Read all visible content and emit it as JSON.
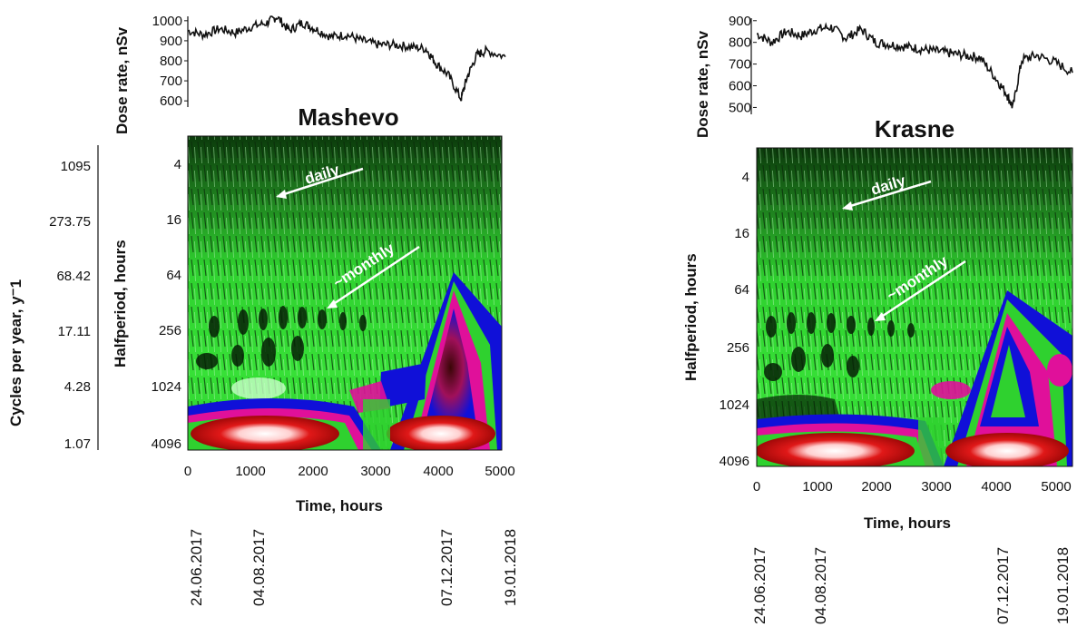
{
  "colors": {
    "accent_green": "#2fd12f",
    "dark_green": "#0b3a0b",
    "blue": "#1010d8",
    "magenta": "#e0109a",
    "red": "#d81818",
    "white": "#ffffff"
  },
  "chart_data": [
    {
      "type": "line",
      "panel": "Mashevo dose rate",
      "ylabel": "Dose rate, nSv",
      "yticks": [
        "1000",
        "900",
        "800",
        "700",
        "600"
      ],
      "ylim": [
        560,
        1040
      ],
      "xlim": [
        0,
        5000
      ],
      "x": [
        0,
        250,
        500,
        750,
        1000,
        1250,
        1400,
        1600,
        1800,
        2000,
        2250,
        2500,
        2750,
        3000,
        3250,
        3500,
        3750,
        3900,
        4100,
        4300,
        4400,
        4550,
        4700,
        5000
      ],
      "values": [
        950,
        930,
        960,
        940,
        970,
        990,
        1020,
        950,
        990,
        960,
        920,
        930,
        900,
        880,
        880,
        870,
        860,
        790,
        730,
        610,
        720,
        830,
        850,
        820
      ]
    },
    {
      "type": "heatmap",
      "panel": "Mashevo wavelet",
      "title": "Mashevo",
      "xlabel": "Time, hours",
      "ylabel": "Halfperiod, hours",
      "y2label": "Cycles per year, y⁻1",
      "xticks": [
        "0",
        "1000",
        "2000",
        "3000",
        "4000",
        "5000"
      ],
      "yticks": [
        "4",
        "16",
        "64",
        "256",
        "1024",
        "4096"
      ],
      "y2ticks": [
        "1095",
        "273.75",
        "68.42",
        "17.11",
        "4.28",
        "1.07"
      ],
      "dates": [
        "24.06.2017",
        "04.08.2017",
        "07.12.2017",
        "19.01.2018"
      ],
      "annotations": [
        "daily",
        "~monthly"
      ]
    },
    {
      "type": "line",
      "panel": "Krasne dose rate",
      "ylabel": "Dose rate, nSv",
      "yticks": [
        "900",
        "800",
        "700",
        "600",
        "500"
      ],
      "ylim": [
        460,
        920
      ],
      "xlim": [
        0,
        5300
      ],
      "x": [
        0,
        250,
        500,
        750,
        1000,
        1250,
        1500,
        1750,
        2000,
        2250,
        2500,
        2750,
        3000,
        3250,
        3500,
        3750,
        4000,
        4200,
        4300,
        4450,
        4700,
        5000,
        5300
      ],
      "values": [
        840,
        800,
        850,
        830,
        860,
        870,
        820,
        860,
        800,
        790,
        780,
        770,
        760,
        750,
        740,
        730,
        640,
        560,
        500,
        720,
        740,
        710,
        660
      ]
    },
    {
      "type": "heatmap",
      "panel": "Krasne wavelet",
      "title": "Krasne",
      "xlabel": "Time, hours",
      "ylabel": "Halfperiod, hours",
      "xticks": [
        "0",
        "1000",
        "2000",
        "3000",
        "4000",
        "5000"
      ],
      "yticks": [
        "4",
        "16",
        "64",
        "256",
        "1024",
        "4096"
      ],
      "dates": [
        "24.06.2017",
        "04.08.2017",
        "07.12.2017",
        "19.01.2018"
      ],
      "annotations": [
        "daily",
        "~monthly"
      ]
    }
  ]
}
